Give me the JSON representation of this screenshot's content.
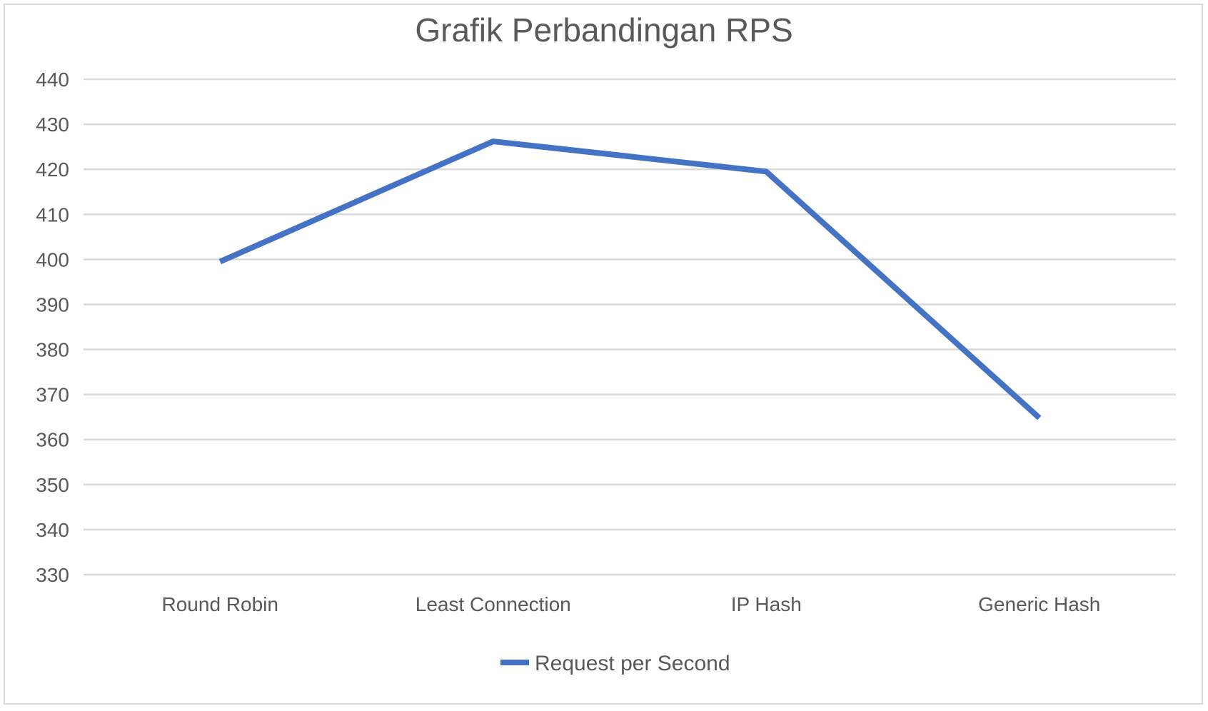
{
  "chart_data": {
    "type": "line",
    "title": "Grafik Perbandingan RPS",
    "categories": [
      "Round Robin",
      "Least Connection",
      "IP Hash",
      "Generic Hash"
    ],
    "series": [
      {
        "name": "Request per Second",
        "values": [
          399.5,
          426.2,
          419.5,
          364.8
        ],
        "color": "#4472C4"
      }
    ],
    "ylim": [
      330,
      440
    ],
    "yticks": [
      440,
      430,
      420,
      410,
      400,
      390,
      380,
      370,
      360,
      350,
      340,
      330
    ],
    "grid": true,
    "legend_position": "bottom"
  }
}
